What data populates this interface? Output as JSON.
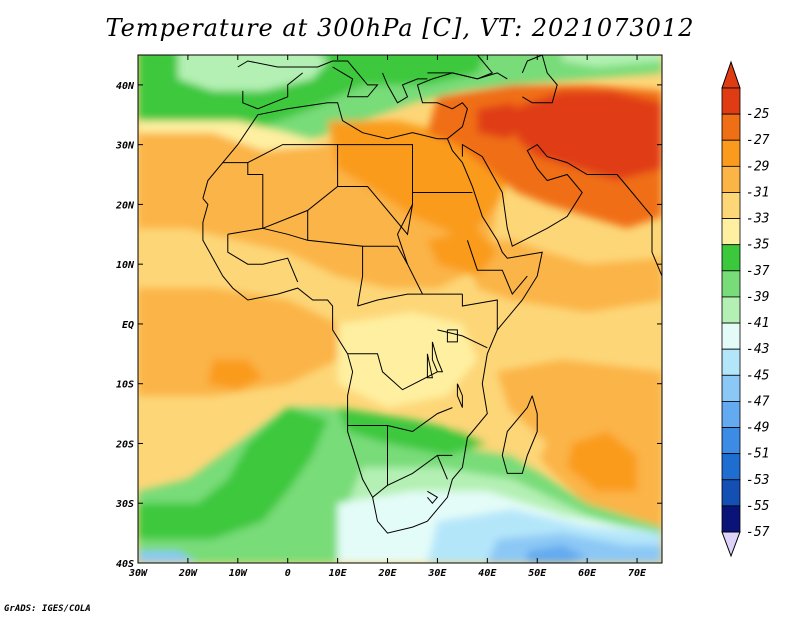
{
  "title": "Temperature at 300hPa [C], VT: 2021073012",
  "credit": "GrADS: IGES/COLA",
  "map": {
    "lon_range": [
      -30,
      75
    ],
    "lat_range": [
      -40,
      45
    ],
    "lat_ticks": [
      {
        "value": 40,
        "label": "40N"
      },
      {
        "value": 30,
        "label": "30N"
      },
      {
        "value": 20,
        "label": "20N"
      },
      {
        "value": 10,
        "label": "10N"
      },
      {
        "value": 0,
        "label": "EQ"
      },
      {
        "value": -10,
        "label": "10S"
      },
      {
        "value": -20,
        "label": "20S"
      },
      {
        "value": -30,
        "label": "30S"
      },
      {
        "value": -40,
        "label": "40S"
      }
    ],
    "lon_ticks": [
      {
        "value": -30,
        "label": "30W"
      },
      {
        "value": -20,
        "label": "20W"
      },
      {
        "value": -10,
        "label": "10W"
      },
      {
        "value": 0,
        "label": "0"
      },
      {
        "value": 10,
        "label": "10E"
      },
      {
        "value": 20,
        "label": "20E"
      },
      {
        "value": 30,
        "label": "30E"
      },
      {
        "value": 40,
        "label": "40E"
      },
      {
        "value": 50,
        "label": "50E"
      },
      {
        "value": 60,
        "label": "60E"
      },
      {
        "value": 70,
        "label": "70E"
      }
    ]
  },
  "colorbar": {
    "levels": [
      {
        "label": "-25",
        "color": "#e03c14"
      },
      {
        "label": "-27",
        "color": "#f06e14"
      },
      {
        "label": "-29",
        "color": "#fa9b1e"
      },
      {
        "label": "-31",
        "color": "#fbb446"
      },
      {
        "label": "-33",
        "color": "#fdd678"
      },
      {
        "label": "-35",
        "color": "#fef0a0"
      },
      {
        "label": "-37",
        "color": "#3cc83c"
      },
      {
        "label": "-39",
        "color": "#78dc78"
      },
      {
        "label": "-41",
        "color": "#b4f0b4"
      },
      {
        "label": "-43",
        "color": "#e4fcf8"
      },
      {
        "label": "-45",
        "color": "#b4e6fa"
      },
      {
        "label": "-47",
        "color": "#8cc8f5"
      },
      {
        "label": "-49",
        "color": "#64aaf0"
      },
      {
        "label": "-51",
        "color": "#3c8ce6"
      },
      {
        "label": "-53",
        "color": "#1e6ed2"
      },
      {
        "label": "-55",
        "color": "#1450b4"
      },
      {
        "label": "-57",
        "color": "#0a1478"
      }
    ],
    "top_arrow_color": "#e03c14",
    "bottom_arrow_color": "#dcd2fa"
  },
  "field_colors": {
    "red": "#e03c14",
    "orange_red": "#f06e14",
    "orange": "#fa9b1e",
    "light_orange": "#fbb446",
    "tan": "#fdd678",
    "pale_yellow": "#fef0a0",
    "green": "#3cc83c",
    "mid_green": "#78dc78",
    "light_green": "#b4f0b4",
    "pale_cyan": "#e4fcf8",
    "light_blue": "#b4e6fa",
    "sky_blue": "#8cc8f5",
    "blue": "#64aaf0"
  }
}
